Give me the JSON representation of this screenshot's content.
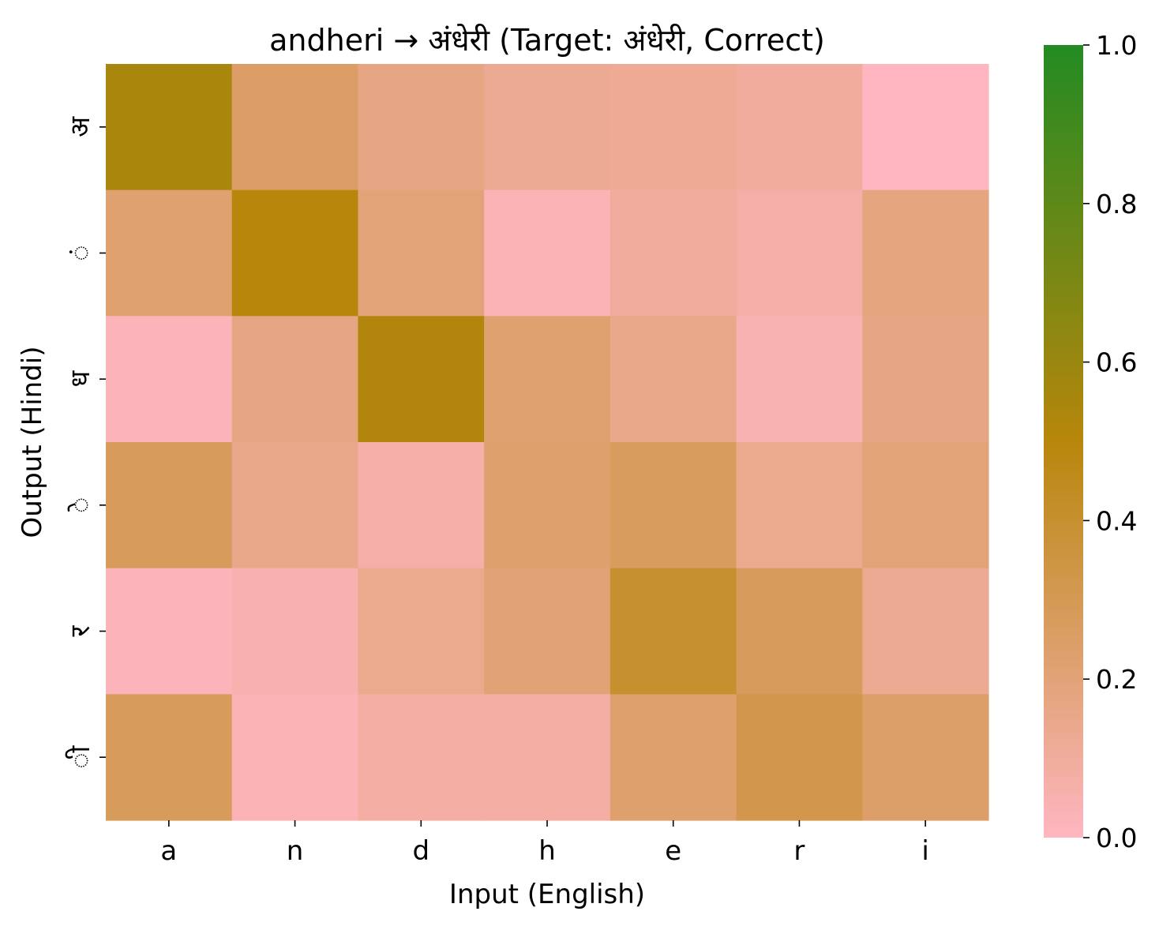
{
  "chart_data": {
    "type": "heatmap",
    "title": "andheri → अंधेरी (Target: अंधेरी, Correct)",
    "xlabel": "Input (English)",
    "ylabel": "Output (Hindi)",
    "x_categories": [
      "a",
      "n",
      "d",
      "h",
      "e",
      "r",
      "i"
    ],
    "y_categories": [
      "अ",
      "ं",
      "ध",
      "े",
      "र",
      "ी"
    ],
    "values": [
      [
        0.55,
        0.25,
        0.17,
        0.13,
        0.12,
        0.1,
        0.0
      ],
      [
        0.22,
        0.5,
        0.2,
        0.03,
        0.1,
        0.07,
        0.18
      ],
      [
        0.02,
        0.17,
        0.52,
        0.22,
        0.15,
        0.04,
        0.17
      ],
      [
        0.28,
        0.15,
        0.07,
        0.23,
        0.27,
        0.14,
        0.2
      ],
      [
        0.02,
        0.05,
        0.14,
        0.21,
        0.4,
        0.28,
        0.13
      ],
      [
        0.28,
        0.03,
        0.08,
        0.08,
        0.23,
        0.32,
        0.24
      ]
    ],
    "colorbar": {
      "range": [
        0.0,
        1.0
      ],
      "ticks": [
        "0.0",
        "0.2",
        "0.4",
        "0.6",
        "0.8",
        "1.0"
      ],
      "colors": {
        "low": "#ffb6c1",
        "mid": "#b8860b",
        "high": "#228b22"
      }
    }
  }
}
